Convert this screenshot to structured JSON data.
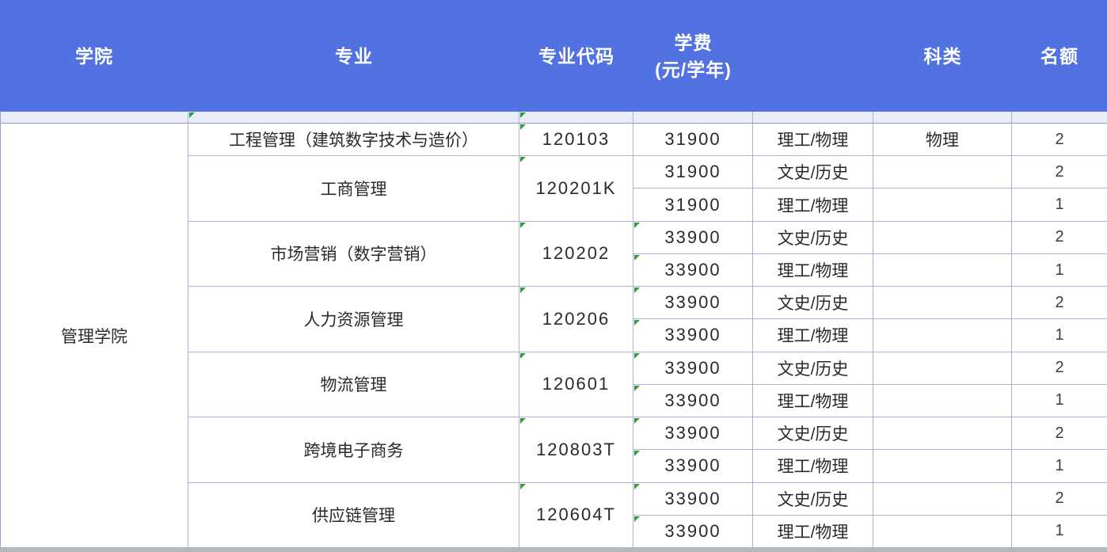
{
  "header": {
    "col_college": "学院",
    "col_major": "专业",
    "col_code": "专业代码",
    "col_fee_line1": "学费",
    "col_fee_line2": "(元/学年)",
    "col_blank": "",
    "col_kelei": "科类",
    "col_quota": "名额"
  },
  "college": {
    "name": "管理学院"
  },
  "majors": [
    {
      "name": "工程管理（建筑数字技术与造价）",
      "code": "120103",
      "rows": [
        {
          "fee": "31900",
          "subject": "理工/物理",
          "kelei": "物理",
          "quota": "2",
          "fee_flag": false
        }
      ]
    },
    {
      "name": "工商管理",
      "code": "120201K",
      "rows": [
        {
          "fee": "31900",
          "subject": "文史/历史",
          "kelei": "",
          "quota": "2",
          "fee_flag": false
        },
        {
          "fee": "31900",
          "subject": "理工/物理",
          "kelei": "",
          "quota": "1",
          "fee_flag": false
        }
      ]
    },
    {
      "name": "市场营销（数字营销）",
      "code": "120202",
      "rows": [
        {
          "fee": "33900",
          "subject": "文史/历史",
          "kelei": "",
          "quota": "2",
          "fee_flag": true
        },
        {
          "fee": "33900",
          "subject": "理工/物理",
          "kelei": "",
          "quota": "1",
          "fee_flag": true
        }
      ]
    },
    {
      "name": "人力资源管理",
      "code": "120206",
      "rows": [
        {
          "fee": "33900",
          "subject": "文史/历史",
          "kelei": "",
          "quota": "2",
          "fee_flag": true
        },
        {
          "fee": "33900",
          "subject": "理工/物理",
          "kelei": "",
          "quota": "1",
          "fee_flag": true
        }
      ]
    },
    {
      "name": "物流管理",
      "code": "120601",
      "rows": [
        {
          "fee": "33900",
          "subject": "文史/历史",
          "kelei": "",
          "quota": "2",
          "fee_flag": true
        },
        {
          "fee": "33900",
          "subject": "理工/物理",
          "kelei": "",
          "quota": "1",
          "fee_flag": true
        }
      ]
    },
    {
      "name": "跨境电子商务",
      "code": "120803T",
      "rows": [
        {
          "fee": "33900",
          "subject": "文史/历史",
          "kelei": "",
          "quota": "2",
          "fee_flag": true
        },
        {
          "fee": "33900",
          "subject": "理工/物理",
          "kelei": "",
          "quota": "1",
          "fee_flag": true
        }
      ]
    },
    {
      "name": "供应链管理",
      "code": "120604T",
      "rows": [
        {
          "fee": "33900",
          "subject": "文史/历史",
          "kelei": "",
          "quota": "2",
          "fee_flag": true
        },
        {
          "fee": "33900",
          "subject": "理工/物理",
          "kelei": "",
          "quota": "1",
          "fee_flag": true
        }
      ]
    }
  ],
  "colors": {
    "header_bg": "#5272e2",
    "header_text": "#ffffff",
    "grid_border": "#a9b2d8",
    "body_text": "#2a2a2a",
    "error_indicator_green": "#2f9e3f",
    "partial_row_bg": "#eaecf6",
    "bottom_strip": "#b5b6ba"
  }
}
